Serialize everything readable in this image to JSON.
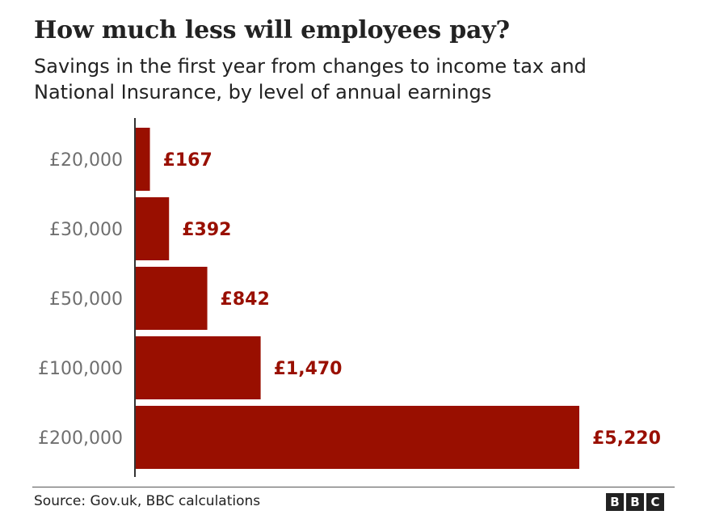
{
  "title": "How much less will employees pay?",
  "subtitle": "Savings in the first year from changes to income tax and National Insurance, by level of annual earnings",
  "source": "Source: Gov.uk, BBC calculations",
  "logo_letters": [
    "B",
    "B",
    "C"
  ],
  "colors": {
    "bar": "#990f00",
    "label": "#990f00",
    "category": "#6f6f6f",
    "axis": "#333333",
    "text": "#222222"
  },
  "chart_data": {
    "type": "bar",
    "orientation": "horizontal",
    "categories": [
      "£20,000",
      "£30,000",
      "£50,000",
      "£100,000",
      "£200,000"
    ],
    "values": [
      167,
      392,
      842,
      1470,
      5220
    ],
    "value_labels": [
      "£167",
      "£392",
      "£842",
      "£1,470",
      "£5,220"
    ],
    "title": "How much less will employees pay?",
    "subtitle": "Savings in the first year from changes to income tax and National Insurance, by level of annual earnings",
    "xlim": [
      0,
      5220
    ],
    "grid": false
  }
}
